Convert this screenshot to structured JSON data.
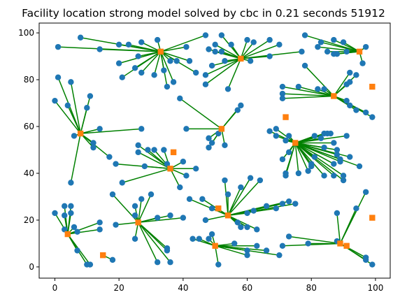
{
  "chart_data": {
    "type": "scatter",
    "title": "Facility location strong model solved by cbc in 0.21 seconds 51912",
    "xlabel": "",
    "ylabel": "",
    "xlim": [
      -4.9,
      104.6
    ],
    "ylim": [
      -4.8,
      104.2
    ],
    "xticks": [
      0,
      20,
      40,
      60,
      80,
      100
    ],
    "yticks": [
      0,
      20,
      40,
      60,
      80,
      100
    ],
    "grid": false,
    "colors": {
      "customer": "#1f77b4",
      "facility": "#ff7f0e",
      "assignment": "#008000"
    },
    "facilities": [
      {
        "id": 0,
        "x": 33,
        "y": 92,
        "open": true
      },
      {
        "id": 1,
        "x": 58,
        "y": 89,
        "open": true
      },
      {
        "id": 2,
        "x": 95,
        "y": 92,
        "open": true
      },
      {
        "id": 3,
        "x": 87,
        "y": 73,
        "open": true
      },
      {
        "id": 4,
        "x": 99,
        "y": 77,
        "open": false
      },
      {
        "id": 5,
        "x": 8,
        "y": 57,
        "open": true
      },
      {
        "id": 6,
        "x": 52,
        "y": 59,
        "open": true
      },
      {
        "id": 7,
        "x": 72,
        "y": 64,
        "open": false
      },
      {
        "id": 8,
        "x": 75,
        "y": 53,
        "open": true
      },
      {
        "id": 9,
        "x": 37,
        "y": 49,
        "open": false
      },
      {
        "id": 10,
        "x": 36,
        "y": 42,
        "open": true
      },
      {
        "id": 11,
        "x": 4,
        "y": 14,
        "open": true
      },
      {
        "id": 12,
        "x": 15,
        "y": 5,
        "open": true
      },
      {
        "id": 13,
        "x": 26,
        "y": 19,
        "open": true
      },
      {
        "id": 14,
        "x": 51,
        "y": 25,
        "open": false
      },
      {
        "id": 15,
        "x": 54,
        "y": 22,
        "open": true
      },
      {
        "id": 16,
        "x": 50,
        "y": 9,
        "open": true
      },
      {
        "id": 17,
        "x": 89,
        "y": 10,
        "open": true
      },
      {
        "id": 18,
        "x": 91,
        "y": 9,
        "open": false
      },
      {
        "id": 19,
        "x": 99,
        "y": 21,
        "open": false
      }
    ],
    "customers": [
      {
        "x": 8,
        "y": 98,
        "f": 0
      },
      {
        "x": 14,
        "y": 93,
        "f": 0
      },
      {
        "x": 1,
        "y": 94,
        "f": 0
      },
      {
        "x": 20,
        "y": 95,
        "f": 0
      },
      {
        "x": 23,
        "y": 95,
        "f": 0
      },
      {
        "x": 27,
        "y": 96,
        "f": 0
      },
      {
        "x": 26,
        "y": 90,
        "f": 0
      },
      {
        "x": 20,
        "y": 87,
        "f": 0
      },
      {
        "x": 21,
        "y": 81,
        "f": 0
      },
      {
        "x": 25,
        "y": 85,
        "f": 0
      },
      {
        "x": 27,
        "y": 83,
        "f": 0
      },
      {
        "x": 31,
        "y": 82,
        "f": 0
      },
      {
        "x": 34,
        "y": 84,
        "f": 0
      },
      {
        "x": 35,
        "y": 77,
        "f": 0
      },
      {
        "x": 37,
        "y": 79,
        "f": 0
      },
      {
        "x": 38,
        "y": 88,
        "f": 0
      },
      {
        "x": 36,
        "y": 88,
        "f": 0
      },
      {
        "x": 42,
        "y": 88,
        "f": 0
      },
      {
        "x": 44,
        "y": 83,
        "f": 0
      },
      {
        "x": 41,
        "y": 94,
        "f": 0
      },
      {
        "x": 47,
        "y": 99,
        "f": 0
      },
      {
        "x": 32,
        "y": 97,
        "f": 0
      },
      {
        "x": 48,
        "y": 93,
        "f": 1
      },
      {
        "x": 50,
        "y": 95,
        "f": 1
      },
      {
        "x": 52,
        "y": 99,
        "f": 1
      },
      {
        "x": 52,
        "y": 92,
        "f": 1
      },
      {
        "x": 50,
        "y": 92,
        "f": 1
      },
      {
        "x": 55,
        "y": 95,
        "f": 1
      },
      {
        "x": 53,
        "y": 88,
        "f": 1
      },
      {
        "x": 49,
        "y": 86,
        "f": 1
      },
      {
        "x": 47,
        "y": 82,
        "f": 1
      },
      {
        "x": 47,
        "y": 78,
        "f": 1
      },
      {
        "x": 54,
        "y": 76,
        "f": 1
      },
      {
        "x": 60,
        "y": 97,
        "f": 1
      },
      {
        "x": 61,
        "y": 88,
        "f": 1
      },
      {
        "x": 62,
        "y": 96,
        "f": 1
      },
      {
        "x": 67,
        "y": 90,
        "f": 1
      },
      {
        "x": 67,
        "y": 97,
        "f": 1
      },
      {
        "x": 70,
        "y": 95,
        "f": 1
      },
      {
        "x": 77,
        "y": 92,
        "f": 1
      },
      {
        "x": 78,
        "y": 99,
        "f": 2
      },
      {
        "x": 83,
        "y": 96,
        "f": 2
      },
      {
        "x": 82,
        "y": 94,
        "f": 2
      },
      {
        "x": 87,
        "y": 97,
        "f": 2
      },
      {
        "x": 90,
        "y": 96,
        "f": 2
      },
      {
        "x": 88,
        "y": 91,
        "f": 2
      },
      {
        "x": 87,
        "y": 91,
        "f": 2
      },
      {
        "x": 85,
        "y": 92,
        "f": 2
      },
      {
        "x": 97,
        "y": 94,
        "f": 2
      },
      {
        "x": 96,
        "y": 87,
        "f": 2
      },
      {
        "x": 91,
        "y": 92,
        "f": 2
      },
      {
        "x": 78,
        "y": 86,
        "f": 3
      },
      {
        "x": 71,
        "y": 77,
        "f": 3
      },
      {
        "x": 71,
        "y": 74,
        "f": 3
      },
      {
        "x": 71,
        "y": 72,
        "f": 3
      },
      {
        "x": 76,
        "y": 77,
        "f": 3
      },
      {
        "x": 82,
        "y": 76,
        "f": 3
      },
      {
        "x": 84,
        "y": 76,
        "f": 3
      },
      {
        "x": 91,
        "y": 78,
        "f": 3
      },
      {
        "x": 92,
        "y": 79,
        "f": 3
      },
      {
        "x": 92,
        "y": 83,
        "f": 3
      },
      {
        "x": 94,
        "y": 82,
        "f": 3
      },
      {
        "x": 91,
        "y": 71,
        "f": 3
      },
      {
        "x": 92,
        "y": 69,
        "f": 3
      },
      {
        "x": 94,
        "y": 67,
        "f": 3
      },
      {
        "x": 97,
        "y": 66,
        "f": 3
      },
      {
        "x": 99,
        "y": 64,
        "f": 3
      },
      {
        "x": 0,
        "y": 71,
        "f": 5
      },
      {
        "x": 1,
        "y": 81,
        "f": 5
      },
      {
        "x": 5,
        "y": 79,
        "f": 5
      },
      {
        "x": 4,
        "y": 69,
        "f": 5
      },
      {
        "x": 10,
        "y": 68,
        "f": 5
      },
      {
        "x": 11,
        "y": 73,
        "f": 5
      },
      {
        "x": 6,
        "y": 56,
        "f": 5
      },
      {
        "x": 14,
        "y": 59,
        "f": 5
      },
      {
        "x": 12,
        "y": 53,
        "f": 5
      },
      {
        "x": 12,
        "y": 51,
        "f": 5
      },
      {
        "x": 17,
        "y": 47,
        "f": 5
      },
      {
        "x": 5,
        "y": 36,
        "f": 5
      },
      {
        "x": 27,
        "y": 59,
        "f": 5
      },
      {
        "x": 39,
        "y": 72,
        "f": 6
      },
      {
        "x": 41,
        "y": 59,
        "f": 6
      },
      {
        "x": 51,
        "y": 57,
        "f": 6
      },
      {
        "x": 48,
        "y": 55,
        "f": 6
      },
      {
        "x": 49,
        "y": 53,
        "f": 6
      },
      {
        "x": 48,
        "y": 51,
        "f": 6
      },
      {
        "x": 53,
        "y": 52,
        "f": 6
      },
      {
        "x": 57,
        "y": 67,
        "f": 6
      },
      {
        "x": 58,
        "y": 69,
        "f": 6
      },
      {
        "x": 67,
        "y": 58,
        "f": 8
      },
      {
        "x": 69,
        "y": 59,
        "f": 8
      },
      {
        "x": 69,
        "y": 56,
        "f": 8
      },
      {
        "x": 72,
        "y": 54,
        "f": 8
      },
      {
        "x": 73,
        "y": 56,
        "f": 8
      },
      {
        "x": 73,
        "y": 49,
        "f": 8
      },
      {
        "x": 71,
        "y": 46,
        "f": 8
      },
      {
        "x": 72,
        "y": 40,
        "f": 8
      },
      {
        "x": 72,
        "y": 39,
        "f": 8
      },
      {
        "x": 76,
        "y": 40,
        "f": 8
      },
      {
        "x": 79,
        "y": 41,
        "f": 8
      },
      {
        "x": 80,
        "y": 43,
        "f": 8
      },
      {
        "x": 80,
        "y": 44,
        "f": 8
      },
      {
        "x": 81,
        "y": 47,
        "f": 8
      },
      {
        "x": 81,
        "y": 56,
        "f": 8
      },
      {
        "x": 83,
        "y": 55,
        "f": 8
      },
      {
        "x": 84,
        "y": 51,
        "f": 8
      },
      {
        "x": 84,
        "y": 57,
        "f": 8
      },
      {
        "x": 85,
        "y": 57,
        "f": 8
      },
      {
        "x": 86,
        "y": 57,
        "f": 8
      },
      {
        "x": 87,
        "y": 53,
        "f": 8
      },
      {
        "x": 88,
        "y": 50,
        "f": 8
      },
      {
        "x": 88,
        "y": 48,
        "f": 8
      },
      {
        "x": 89,
        "y": 46,
        "f": 8
      },
      {
        "x": 89,
        "y": 45,
        "f": 8
      },
      {
        "x": 87,
        "y": 44,
        "f": 8
      },
      {
        "x": 91,
        "y": 56,
        "f": 8
      },
      {
        "x": 92,
        "y": 47,
        "f": 8
      },
      {
        "x": 95,
        "y": 43,
        "f": 8
      },
      {
        "x": 84,
        "y": 39,
        "f": 8
      },
      {
        "x": 87,
        "y": 39,
        "f": 8
      },
      {
        "x": 90,
        "y": 37,
        "f": 8
      },
      {
        "x": 90,
        "y": 39,
        "f": 8
      },
      {
        "x": 26,
        "y": 52,
        "f": 10
      },
      {
        "x": 26,
        "y": 49,
        "f": 10
      },
      {
        "x": 29,
        "y": 50,
        "f": 10
      },
      {
        "x": 31,
        "y": 50,
        "f": 10
      },
      {
        "x": 34,
        "y": 50,
        "f": 10
      },
      {
        "x": 28,
        "y": 43,
        "f": 10
      },
      {
        "x": 35,
        "y": 44,
        "f": 10
      },
      {
        "x": 40,
        "y": 45,
        "f": 10
      },
      {
        "x": 44,
        "y": 42,
        "f": 10
      },
      {
        "x": 41,
        "y": 39,
        "f": 10
      },
      {
        "x": 21,
        "y": 36,
        "f": 10
      },
      {
        "x": 39,
        "y": 34,
        "f": 10
      },
      {
        "x": 19,
        "y": 44,
        "f": 10
      },
      {
        "x": 0,
        "y": 23,
        "f": 11
      },
      {
        "x": 3,
        "y": 26,
        "f": 11
      },
      {
        "x": 5,
        "y": 26,
        "f": 11
      },
      {
        "x": 3,
        "y": 22,
        "f": 11
      },
      {
        "x": 5,
        "y": 23,
        "f": 11
      },
      {
        "x": 3,
        "y": 16,
        "f": 11
      },
      {
        "x": 6,
        "y": 17,
        "f": 11
      },
      {
        "x": 7,
        "y": 15,
        "f": 11
      },
      {
        "x": 7,
        "y": 7,
        "f": 11
      },
      {
        "x": 10,
        "y": 1,
        "f": 11
      },
      {
        "x": 11,
        "y": 1,
        "f": 11
      },
      {
        "x": 14,
        "y": 16,
        "f": 11
      },
      {
        "x": 14,
        "y": 19,
        "f": 11
      },
      {
        "x": 18,
        "y": 3,
        "f": 12
      },
      {
        "x": 18,
        "y": 31,
        "f": 13
      },
      {
        "x": 19,
        "y": 18,
        "f": 13
      },
      {
        "x": 25,
        "y": 26,
        "f": 13
      },
      {
        "x": 25,
        "y": 22,
        "f": 13
      },
      {
        "x": 27,
        "y": 29,
        "f": 13
      },
      {
        "x": 30,
        "y": 31,
        "f": 13
      },
      {
        "x": 25,
        "y": 12,
        "f": 13
      },
      {
        "x": 32,
        "y": 21,
        "f": 13
      },
      {
        "x": 35,
        "y": 8,
        "f": 13
      },
      {
        "x": 35,
        "y": 7,
        "f": 13
      },
      {
        "x": 36,
        "y": 2,
        "f": 13
      },
      {
        "x": 36,
        "y": 22,
        "f": 13
      },
      {
        "x": 40,
        "y": 21,
        "f": 13
      },
      {
        "x": 32,
        "y": 2,
        "f": 13
      },
      {
        "x": 42,
        "y": 29,
        "f": 15
      },
      {
        "x": 46,
        "y": 29,
        "f": 15
      },
      {
        "x": 49,
        "y": 25,
        "f": 15
      },
      {
        "x": 47,
        "y": 20,
        "f": 15
      },
      {
        "x": 53,
        "y": 37,
        "f": 15
      },
      {
        "x": 54,
        "y": 31,
        "f": 15
      },
      {
        "x": 58,
        "y": 34,
        "f": 15
      },
      {
        "x": 61,
        "y": 38,
        "f": 15
      },
      {
        "x": 64,
        "y": 37,
        "f": 15
      },
      {
        "x": 60,
        "y": 23,
        "f": 15
      },
      {
        "x": 57,
        "y": 19,
        "f": 15
      },
      {
        "x": 58,
        "y": 17,
        "f": 15
      },
      {
        "x": 60,
        "y": 17,
        "f": 15
      },
      {
        "x": 63,
        "y": 16,
        "f": 15
      },
      {
        "x": 62,
        "y": 24,
        "f": 15
      },
      {
        "x": 66,
        "y": 26,
        "f": 15
      },
      {
        "x": 69,
        "y": 25,
        "f": 15
      },
      {
        "x": 71,
        "y": 27,
        "f": 15
      },
      {
        "x": 73,
        "y": 28,
        "f": 15
      },
      {
        "x": 75,
        "y": 27,
        "f": 15
      },
      {
        "x": 43,
        "y": 12,
        "f": 16
      },
      {
        "x": 45,
        "y": 12,
        "f": 16
      },
      {
        "x": 49,
        "y": 14,
        "f": 16
      },
      {
        "x": 48,
        "y": 12,
        "f": 16
      },
      {
        "x": 51,
        "y": 1,
        "f": 16
      },
      {
        "x": 56,
        "y": 10,
        "f": 16
      },
      {
        "x": 60,
        "y": 7,
        "f": 16
      },
      {
        "x": 60,
        "y": 5,
        "f": 16
      },
      {
        "x": 63,
        "y": 9,
        "f": 16
      },
      {
        "x": 66,
        "y": 7,
        "f": 16
      },
      {
        "x": 70,
        "y": 5,
        "f": 16
      },
      {
        "x": 71,
        "y": 9,
        "f": 17
      },
      {
        "x": 73,
        "y": 13,
        "f": 17
      },
      {
        "x": 79,
        "y": 10,
        "f": 17
      },
      {
        "x": 88,
        "y": 11,
        "f": 17
      },
      {
        "x": 88,
        "y": 23,
        "f": 17
      },
      {
        "x": 94,
        "y": 25,
        "f": 17
      },
      {
        "x": 97,
        "y": 32,
        "f": 17
      },
      {
        "x": 97,
        "y": 4,
        "f": 17
      },
      {
        "x": 97,
        "y": 3,
        "f": 17
      },
      {
        "x": 99,
        "y": 1,
        "f": 17
      }
    ]
  }
}
